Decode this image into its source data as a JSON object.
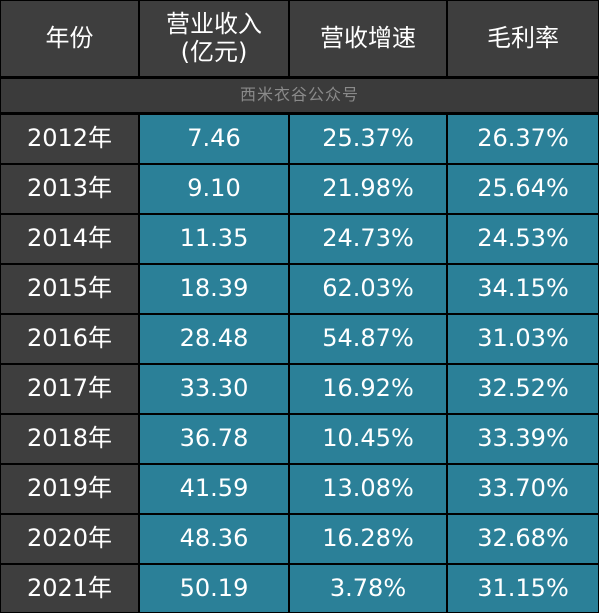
{
  "headers": [
    "年份",
    "营业收入\n(亿元)",
    "营收增速",
    "毛利率"
  ],
  "banner": "西米衣谷公众号",
  "colors": {
    "header_bg": "#3e3e3e",
    "value_bg": "#2b8098",
    "border": "#000000",
    "text": "#ffffff",
    "banner_text": "#8a8a8a"
  },
  "chart_data": {
    "type": "table",
    "columns": [
      "年份",
      "营业收入(亿元)",
      "营收增速",
      "毛利率"
    ],
    "rows": [
      [
        "2012年",
        "7.46",
        "25.37%",
        "26.37%"
      ],
      [
        "2013年",
        "9.10",
        "21.98%",
        "25.64%"
      ],
      [
        "2014年",
        "11.35",
        "24.73%",
        "24.53%"
      ],
      [
        "2015年",
        "18.39",
        "62.03%",
        "34.15%"
      ],
      [
        "2016年",
        "28.48",
        "54.87%",
        "31.03%"
      ],
      [
        "2017年",
        "33.30",
        "16.92%",
        "32.52%"
      ],
      [
        "2018年",
        "36.78",
        "10.45%",
        "33.39%"
      ],
      [
        "2019年",
        "41.59",
        "13.08%",
        "33.70%"
      ],
      [
        "2020年",
        "48.36",
        "16.28%",
        "32.68%"
      ],
      [
        "2021年",
        "50.19",
        "3.78%",
        "31.15%"
      ]
    ]
  }
}
